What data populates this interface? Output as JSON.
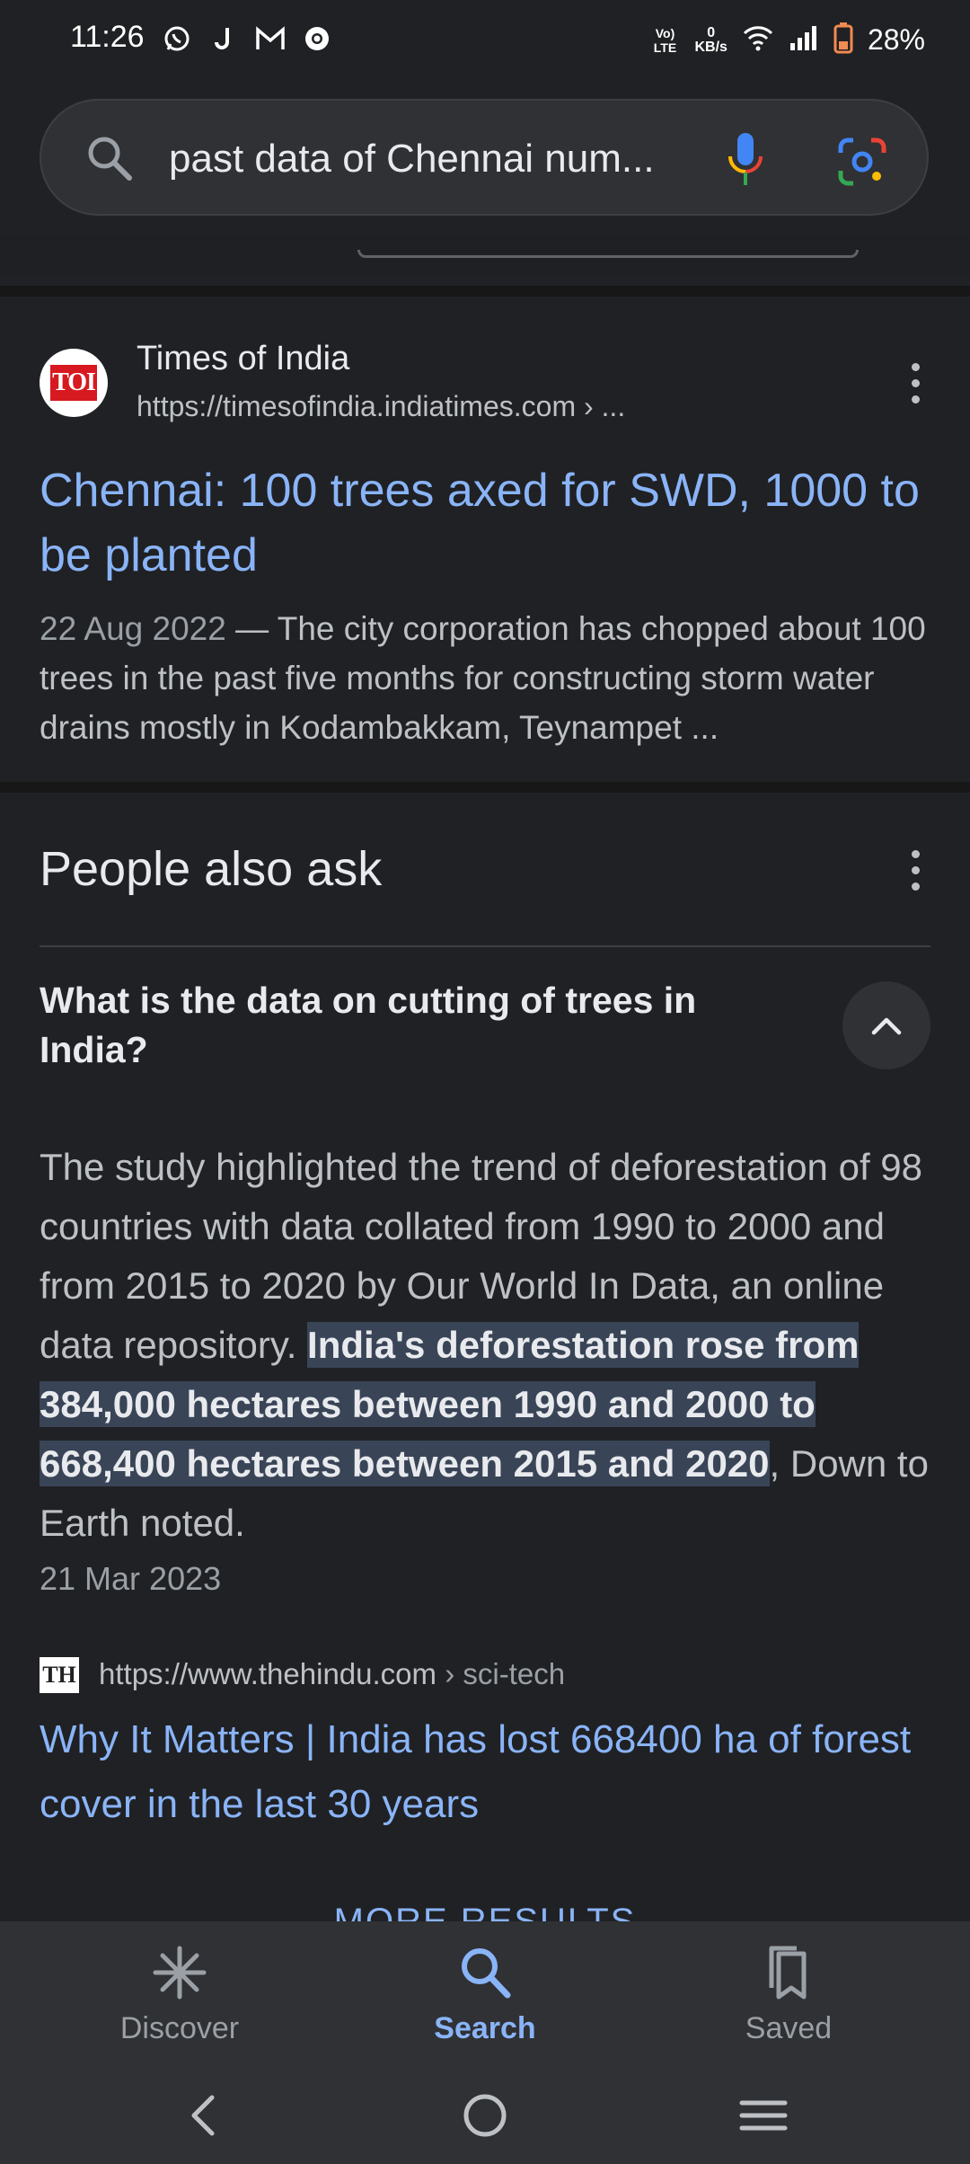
{
  "status_bar": {
    "time": "11:26",
    "network_label_1": "Vo) LTE",
    "speed_value": "0",
    "speed_unit": "KB/s",
    "battery": "28%"
  },
  "search": {
    "query": "past data of Chennai num..."
  },
  "result": {
    "site_name": "Times of India",
    "url": "https://timesofindia.indiatimes.com › ...",
    "logo_text": "TOI",
    "title": "Chennai: 100 trees axed for SWD, 1000 to be planted",
    "date": "22 Aug 2022",
    "snippet": " — The city corporation has chopped about 100 trees in the past five months for constructing storm water drains mostly in Kodambakkam, Teynampet ..."
  },
  "people_also_ask": {
    "title": "People also ask",
    "question": "What is the data on cutting of trees in India?",
    "answer_pre": "The study highlighted the trend of deforestation of 98 countries with data collated from 1990 to 2000 and from 2015 to 2020 by Our World In Data, an online data repository. ",
    "answer_highlight": "India's deforestation rose from 384,000 hectares between 1990 and 2000 to 668,400 hectares between 2015 and 2020",
    "answer_post": ", Down to Earth noted.",
    "answer_date": "21 Mar 2023",
    "source_logo": "TH",
    "source_url": "https://www.thehindu.com",
    "source_path": " › sci-tech",
    "source_title": "Why It Matters | India has lost 668400 ha of forest cover in the last 30 years"
  },
  "more_results": "MORE RESULTS",
  "bottom_nav": {
    "discover": "Discover",
    "search": "Search",
    "saved": "Saved"
  }
}
